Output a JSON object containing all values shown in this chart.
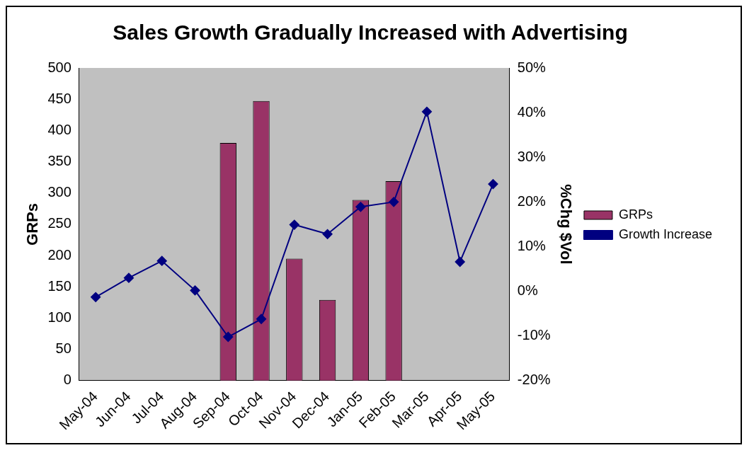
{
  "chart_data": {
    "type": "bar",
    "title": "Sales Growth Gradually Increased with Advertising",
    "ylabel": "GRPs",
    "y2label": "%Chg $Vol",
    "categories": [
      "May-04",
      "Jun-04",
      "Jul-04",
      "Aug-04",
      "Sep-04",
      "Oct-04",
      "Nov-04",
      "Dec-04",
      "Jan-05",
      "Feb-05",
      "Mar-05",
      "Apr-05",
      "May-05"
    ],
    "series": [
      {
        "name": "GRPs",
        "color": "#993366",
        "values": [
          null,
          null,
          null,
          null,
          380,
          447,
          195,
          129,
          289,
          319,
          null,
          null,
          null
        ]
      },
      {
        "name": "Growth Increase",
        "type": "line",
        "axis": "y2",
        "color": "#000080",
        "values": [
          -1.3,
          3,
          6.8,
          0.2,
          -10.2,
          -6.2,
          14.9,
          12.8,
          18.9,
          20,
          40.2,
          6.6,
          24
        ]
      }
    ],
    "ylim": [
      0,
      500
    ],
    "yticks": [
      0,
      50,
      100,
      150,
      200,
      250,
      300,
      350,
      400,
      450,
      500
    ],
    "y2lim": [
      -20,
      50
    ],
    "y2ticks": [
      {
        "value": -20,
        "label": "-20%"
      },
      {
        "value": -10,
        "label": "-10%"
      },
      {
        "value": 0,
        "label": "0%"
      },
      {
        "value": 10,
        "label": "10%"
      },
      {
        "value": 20,
        "label": "20%"
      },
      {
        "value": 30,
        "label": "30%"
      },
      {
        "value": 40,
        "label": "40%"
      },
      {
        "value": 50,
        "label": "50%"
      }
    ],
    "grid": false,
    "legend": "right",
    "marker": "diamond"
  }
}
